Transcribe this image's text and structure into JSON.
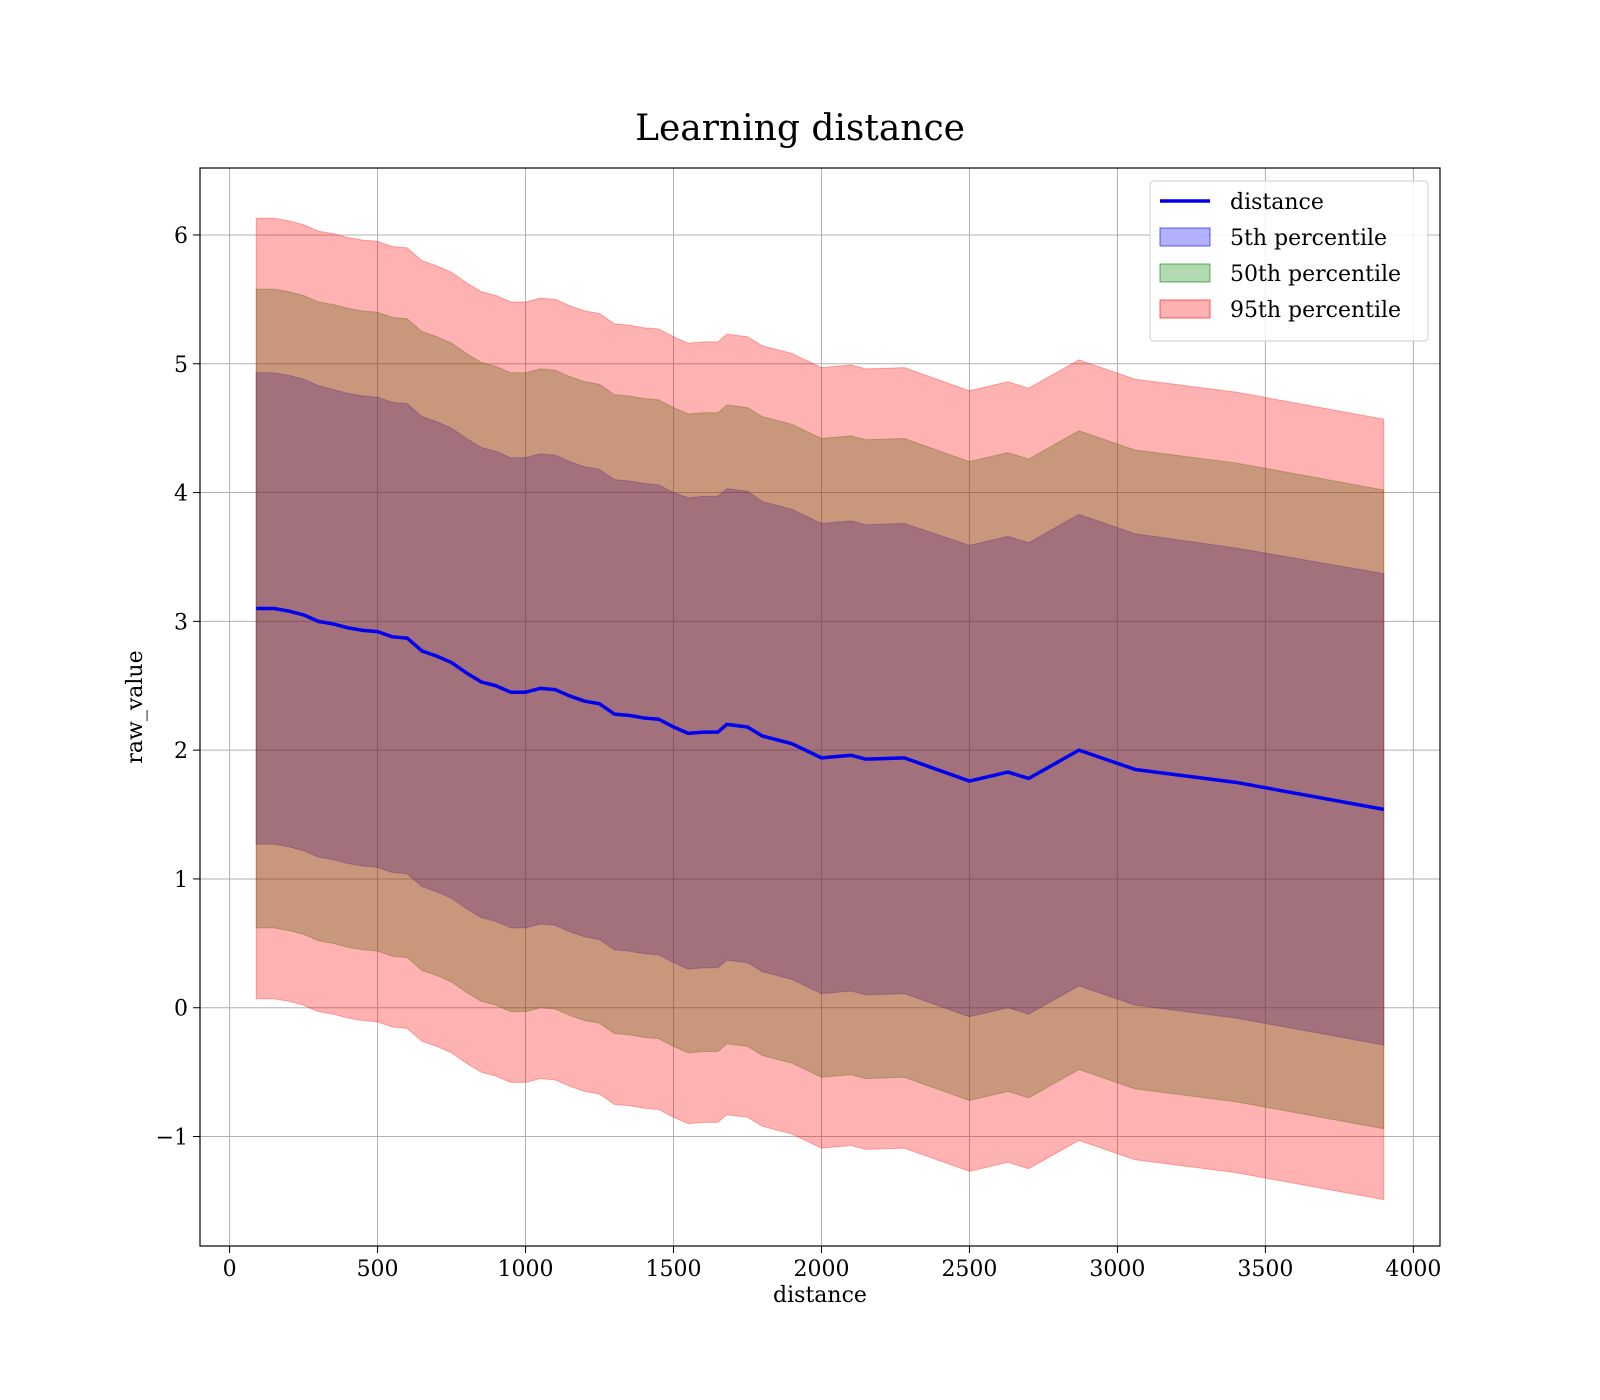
{
  "chart_data": {
    "type": "area",
    "title": "Learning distance",
    "xlabel": "distance",
    "ylabel": "raw_value",
    "xlim": [
      -100,
      4090
    ],
    "ylim": [
      -1.85,
      6.52
    ],
    "xticks": [
      0,
      500,
      1000,
      1500,
      2000,
      2500,
      3000,
      3500,
      4000
    ],
    "yticks": [
      -1,
      0,
      1,
      2,
      3,
      4,
      5,
      6
    ],
    "xtick_labels": [
      "0",
      "500",
      "1000",
      "1500",
      "2000",
      "2500",
      "3000",
      "3500",
      "4000"
    ],
    "ytick_labels": [
      "−1",
      "0",
      "1",
      "2",
      "3",
      "4",
      "5",
      "6"
    ],
    "grid": true,
    "legend_position": "top-right",
    "x": [
      90,
      150,
      200,
      250,
      300,
      350,
      400,
      450,
      500,
      550,
      600,
      650,
      700,
      750,
      800,
      850,
      900,
      950,
      1000,
      1050,
      1100,
      1150,
      1200,
      1250,
      1300,
      1350,
      1400,
      1450,
      1500,
      1550,
      1600,
      1650,
      1680,
      1750,
      1800,
      1900,
      2000,
      2100,
      2150,
      2280,
      2500,
      2630,
      2700,
      2870,
      3060,
      3400,
      3900
    ],
    "series": [
      {
        "name": "distance",
        "kind": "line",
        "color": "#0000ee",
        "values": [
          3.1,
          3.1,
          3.08,
          3.05,
          3.0,
          2.98,
          2.95,
          2.93,
          2.92,
          2.88,
          2.87,
          2.77,
          2.73,
          2.68,
          2.6,
          2.53,
          2.5,
          2.45,
          2.45,
          2.48,
          2.47,
          2.42,
          2.38,
          2.36,
          2.28,
          2.27,
          2.25,
          2.24,
          2.18,
          2.13,
          2.14,
          2.14,
          2.2,
          2.18,
          2.11,
          2.05,
          1.94,
          1.96,
          1.93,
          1.94,
          1.76,
          1.83,
          1.78,
          2.0,
          1.85,
          1.75,
          1.54
        ]
      },
      {
        "name": "5th percentile",
        "kind": "band",
        "color": "#0000ff",
        "opacity": 0.3,
        "values_upper": [
          4.93,
          4.93,
          4.91,
          4.88,
          4.83,
          4.8,
          4.77,
          4.75,
          4.74,
          4.7,
          4.69,
          4.59,
          4.55,
          4.5,
          4.42,
          4.35,
          4.32,
          4.27,
          4.27,
          4.3,
          4.29,
          4.24,
          4.2,
          4.18,
          4.1,
          4.09,
          4.07,
          4.06,
          4.0,
          3.96,
          3.97,
          3.97,
          4.03,
          4.01,
          3.93,
          3.87,
          3.76,
          3.78,
          3.75,
          3.76,
          3.59,
          3.66,
          3.61,
          3.83,
          3.68,
          3.57,
          3.37
        ],
        "values_lower": [
          1.27,
          1.27,
          1.25,
          1.22,
          1.17,
          1.15,
          1.12,
          1.1,
          1.09,
          1.05,
          1.04,
          0.94,
          0.9,
          0.85,
          0.77,
          0.7,
          0.67,
          0.62,
          0.62,
          0.65,
          0.64,
          0.59,
          0.55,
          0.53,
          0.45,
          0.44,
          0.42,
          0.41,
          0.35,
          0.3,
          0.31,
          0.31,
          0.37,
          0.35,
          0.28,
          0.22,
          0.11,
          0.13,
          0.1,
          0.11,
          -0.07,
          0.0,
          -0.05,
          0.17,
          0.02,
          -0.08,
          -0.29
        ]
      },
      {
        "name": "50th percentile",
        "kind": "band",
        "color": "#008000",
        "opacity": 0.3,
        "values_upper": [
          5.58,
          5.58,
          5.56,
          5.53,
          5.48,
          5.46,
          5.43,
          5.41,
          5.4,
          5.36,
          5.35,
          5.25,
          5.21,
          5.16,
          5.08,
          5.01,
          4.98,
          4.93,
          4.93,
          4.96,
          4.95,
          4.9,
          4.86,
          4.84,
          4.76,
          4.75,
          4.73,
          4.72,
          4.66,
          4.61,
          4.62,
          4.62,
          4.68,
          4.66,
          4.59,
          4.53,
          4.42,
          4.44,
          4.41,
          4.42,
          4.24,
          4.31,
          4.26,
          4.48,
          4.33,
          4.23,
          4.02
        ],
        "values_lower": [
          0.62,
          0.62,
          0.6,
          0.57,
          0.52,
          0.5,
          0.47,
          0.45,
          0.44,
          0.4,
          0.39,
          0.29,
          0.25,
          0.2,
          0.12,
          0.05,
          0.02,
          -0.03,
          -0.03,
          0.0,
          -0.01,
          -0.06,
          -0.1,
          -0.12,
          -0.2,
          -0.21,
          -0.23,
          -0.24,
          -0.3,
          -0.35,
          -0.34,
          -0.34,
          -0.28,
          -0.3,
          -0.37,
          -0.43,
          -0.54,
          -0.52,
          -0.55,
          -0.54,
          -0.72,
          -0.65,
          -0.7,
          -0.48,
          -0.63,
          -0.73,
          -0.94
        ]
      },
      {
        "name": "95th percentile",
        "kind": "band",
        "color": "#ff0000",
        "opacity": 0.3,
        "values_upper": [
          6.13,
          6.13,
          6.11,
          6.08,
          6.03,
          6.01,
          5.98,
          5.96,
          5.95,
          5.91,
          5.9,
          5.8,
          5.76,
          5.71,
          5.63,
          5.56,
          5.53,
          5.48,
          5.48,
          5.51,
          5.5,
          5.45,
          5.41,
          5.39,
          5.31,
          5.3,
          5.28,
          5.27,
          5.21,
          5.16,
          5.17,
          5.17,
          5.23,
          5.21,
          5.14,
          5.08,
          4.97,
          4.99,
          4.96,
          4.97,
          4.79,
          4.86,
          4.81,
          5.03,
          4.88,
          4.78,
          4.57
        ],
        "values_lower": [
          0.07,
          0.07,
          0.05,
          0.02,
          -0.03,
          -0.05,
          -0.08,
          -0.1,
          -0.11,
          -0.15,
          -0.16,
          -0.26,
          -0.3,
          -0.35,
          -0.43,
          -0.5,
          -0.53,
          -0.58,
          -0.58,
          -0.55,
          -0.56,
          -0.61,
          -0.65,
          -0.67,
          -0.75,
          -0.76,
          -0.78,
          -0.79,
          -0.85,
          -0.9,
          -0.89,
          -0.89,
          -0.83,
          -0.85,
          -0.92,
          -0.98,
          -1.09,
          -1.07,
          -1.1,
          -1.09,
          -1.27,
          -1.2,
          -1.25,
          -1.03,
          -1.18,
          -1.28,
          -1.49
        ]
      }
    ]
  }
}
